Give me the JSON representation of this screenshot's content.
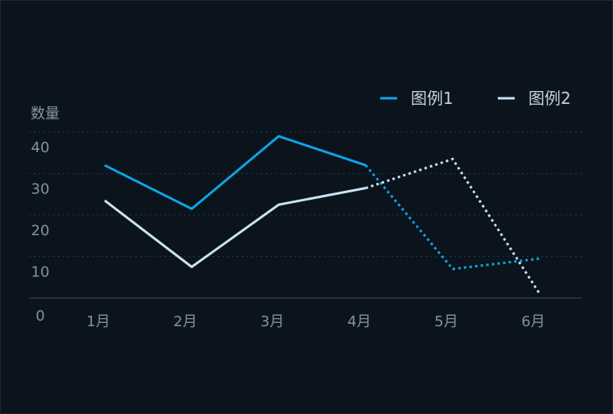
{
  "chart_data": {
    "type": "line",
    "ylabel": "数量",
    "categories": [
      "1月",
      "2月",
      "3月",
      "4月",
      "5月",
      "6月"
    ],
    "y_ticks": [
      "0",
      "10",
      "20",
      "30",
      "40"
    ],
    "ylim": [
      0,
      40
    ],
    "grid": true,
    "legend_position": "top-right",
    "series": [
      {
        "name": "图例1",
        "color": "#0ea5e4",
        "values": [
          32,
          21.5,
          39,
          32,
          7,
          9.5
        ],
        "solid_until_index": 3
      },
      {
        "name": "图例2",
        "color": "#c6e3f3",
        "values": [
          23.5,
          7.5,
          22.5,
          26.5,
          33.5,
          1
        ],
        "solid_until_index": 3
      }
    ]
  }
}
